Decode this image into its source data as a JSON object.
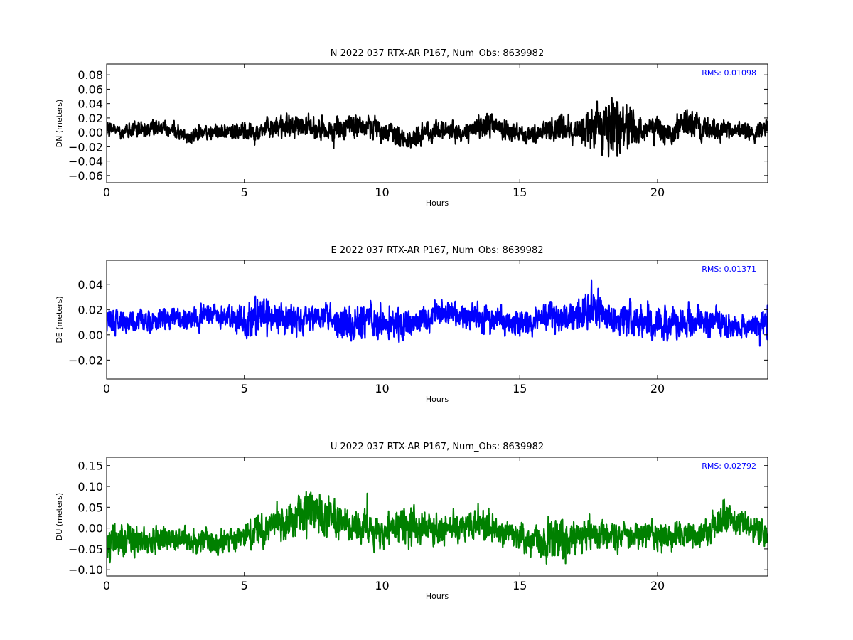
{
  "chart_data": [
    {
      "type": "line",
      "title": "N 2022 037 RTX-AR  P167, Num_Obs: 8639982",
      "xlabel": "Hours",
      "ylabel": "DN (meters)",
      "xlim": [
        0,
        24
      ],
      "ylim": [
        -0.07,
        0.095
      ],
      "xticks": [
        0,
        5,
        10,
        15,
        20
      ],
      "yticks": [
        -0.06,
        -0.04,
        -0.02,
        0.0,
        0.02,
        0.04,
        0.06,
        0.08
      ],
      "ytick_labels": [
        "−0.06",
        "−0.04",
        "−0.02",
        "0.00",
        "0.02",
        "0.04",
        "0.06",
        "0.08"
      ],
      "color": "#000000",
      "rms_text": "RMS:  0.01098",
      "rms_color": "#0000ff",
      "grid": false,
      "series": [
        {
          "values_description_free": true,
          "x": [
            0,
            0.5,
            1,
            1.5,
            2,
            2.5,
            3,
            3.5,
            4,
            4.5,
            5,
            5.5,
            6,
            6.5,
            7,
            7.5,
            8,
            8.5,
            9,
            9.5,
            10,
            10.5,
            11,
            11.5,
            12,
            12.5,
            13,
            13.5,
            14,
            14.5,
            15,
            15.5,
            16,
            16.5,
            17,
            17.5,
            18,
            18.5,
            19,
            19.5,
            20,
            20.5,
            21,
            21.5,
            22,
            22.5,
            23,
            23.5,
            24
          ],
          "center": [
            0.003,
            0.002,
            0.003,
            0.004,
            0.005,
            0.002,
            -0.004,
            0.0,
            0.002,
            0.0,
            0.001,
            0.004,
            0.006,
            0.01,
            0.008,
            0.006,
            0.002,
            0.006,
            0.01,
            0.008,
            0.003,
            -0.002,
            -0.012,
            0.0,
            0.003,
            0.002,
            -0.002,
            0.008,
            0.01,
            0.002,
            0.0,
            -0.002,
            0.004,
            0.006,
            0.002,
            0.006,
            0.012,
            0.014,
            0.005,
            0.003,
            0.005,
            0.0,
            0.012,
            0.01,
            0.003,
            0.002,
            0.004,
            0.0,
            0.004
          ],
          "spread": [
            0.012,
            0.011,
            0.011,
            0.012,
            0.012,
            0.011,
            0.011,
            0.011,
            0.011,
            0.012,
            0.013,
            0.013,
            0.015,
            0.017,
            0.016,
            0.015,
            0.014,
            0.015,
            0.016,
            0.015,
            0.015,
            0.016,
            0.018,
            0.015,
            0.015,
            0.015,
            0.015,
            0.017,
            0.017,
            0.014,
            0.012,
            0.013,
            0.018,
            0.02,
            0.018,
            0.028,
            0.035,
            0.045,
            0.03,
            0.018,
            0.02,
            0.018,
            0.022,
            0.02,
            0.015,
            0.013,
            0.013,
            0.012,
            0.012
          ]
        }
      ]
    },
    {
      "type": "line",
      "title": "E 2022 037 RTX-AR  P167, Num_Obs: 8639982",
      "xlabel": "Hours",
      "ylabel": "DE (meters)",
      "xlim": [
        0,
        24
      ],
      "ylim": [
        -0.035,
        0.059
      ],
      "xticks": [
        0,
        5,
        10,
        15,
        20
      ],
      "yticks": [
        -0.02,
        0.0,
        0.02,
        0.04
      ],
      "ytick_labels": [
        "−0.02",
        "0.00",
        "0.02",
        "0.04"
      ],
      "color": "#0000ff",
      "rms_text": "RMS:  0.01371",
      "rms_color": "#0000ff",
      "grid": false,
      "series": [
        {
          "x": [
            0,
            0.5,
            1,
            1.5,
            2,
            2.5,
            3,
            3.5,
            4,
            4.5,
            5,
            5.5,
            6,
            6.5,
            7,
            7.5,
            8,
            8.5,
            9,
            9.5,
            10,
            10.5,
            11,
            11.5,
            12,
            12.5,
            13,
            13.5,
            14,
            14.5,
            15,
            15.5,
            16,
            16.5,
            17,
            17.5,
            18,
            18.5,
            19,
            19.5,
            20,
            20.5,
            21,
            21.5,
            22,
            22.5,
            23,
            23.5,
            24
          ],
          "center": [
            0.01,
            0.011,
            0.012,
            0.012,
            0.013,
            0.013,
            0.012,
            0.014,
            0.015,
            0.013,
            0.012,
            0.015,
            0.013,
            0.011,
            0.012,
            0.012,
            0.012,
            0.01,
            0.01,
            0.012,
            0.01,
            0.008,
            0.008,
            0.013,
            0.016,
            0.016,
            0.015,
            0.013,
            0.012,
            0.011,
            0.01,
            0.011,
            0.013,
            0.013,
            0.016,
            0.02,
            0.015,
            0.012,
            0.012,
            0.01,
            0.008,
            0.01,
            0.012,
            0.011,
            0.01,
            0.008,
            0.007,
            0.007,
            0.008
          ],
          "spread": [
            0.012,
            0.01,
            0.009,
            0.009,
            0.009,
            0.009,
            0.009,
            0.01,
            0.01,
            0.011,
            0.014,
            0.017,
            0.013,
            0.011,
            0.011,
            0.011,
            0.011,
            0.013,
            0.015,
            0.015,
            0.013,
            0.013,
            0.013,
            0.011,
            0.011,
            0.01,
            0.01,
            0.011,
            0.011,
            0.011,
            0.012,
            0.012,
            0.011,
            0.011,
            0.012,
            0.016,
            0.013,
            0.012,
            0.013,
            0.012,
            0.012,
            0.012,
            0.013,
            0.012,
            0.011,
            0.01,
            0.01,
            0.01,
            0.012
          ]
        }
      ]
    },
    {
      "type": "line",
      "title": "U 2022 037 RTX-AR  P167, Num_Obs: 8639982",
      "xlabel": "Hours",
      "ylabel": "DU (meters)",
      "xlim": [
        0,
        24
      ],
      "ylim": [
        -0.115,
        0.17
      ],
      "xticks": [
        0,
        5,
        10,
        15,
        20
      ],
      "yticks": [
        -0.1,
        -0.05,
        0.0,
        0.05,
        0.1,
        0.15
      ],
      "ytick_labels": [
        "−0.10",
        "−0.05",
        "0.00",
        "0.05",
        "0.10",
        "0.15"
      ],
      "color": "#008000",
      "rms_text": "RMS:  0.02792",
      "rms_color": "#0000ff",
      "grid": false,
      "series": [
        {
          "x": [
            0,
            0.5,
            1,
            1.5,
            2,
            2.5,
            3,
            3.5,
            4,
            4.5,
            5,
            5.5,
            6,
            6.5,
            7,
            7.5,
            8,
            8.5,
            9,
            9.5,
            10,
            10.5,
            11,
            11.5,
            12,
            12.5,
            13,
            13.5,
            14,
            14.5,
            15,
            15.5,
            16,
            16.5,
            17,
            17.5,
            18,
            18.5,
            19,
            19.5,
            20,
            20.5,
            21,
            21.5,
            22,
            22.5,
            23,
            23.5,
            24
          ],
          "center": [
            -0.03,
            -0.03,
            -0.028,
            -0.03,
            -0.028,
            -0.025,
            -0.03,
            -0.03,
            -0.035,
            -0.03,
            -0.02,
            -0.005,
            0.01,
            0.015,
            0.025,
            0.04,
            0.03,
            0.01,
            0.0,
            -0.005,
            -0.01,
            0.0,
            0.01,
            0.0,
            0.0,
            0.005,
            0.0,
            0.01,
            0.0,
            -0.01,
            -0.02,
            -0.035,
            -0.03,
            -0.025,
            -0.02,
            -0.02,
            -0.015,
            -0.025,
            -0.02,
            -0.015,
            -0.02,
            -0.02,
            -0.01,
            -0.02,
            0.0,
            0.03,
            0.01,
            0.0,
            -0.01
          ],
          "spread": [
            0.045,
            0.04,
            0.038,
            0.035,
            0.03,
            0.03,
            0.03,
            0.03,
            0.032,
            0.03,
            0.035,
            0.04,
            0.04,
            0.045,
            0.05,
            0.06,
            0.05,
            0.04,
            0.04,
            0.04,
            0.035,
            0.04,
            0.05,
            0.035,
            0.035,
            0.035,
            0.035,
            0.045,
            0.035,
            0.035,
            0.035,
            0.035,
            0.05,
            0.055,
            0.045,
            0.04,
            0.035,
            0.035,
            0.035,
            0.035,
            0.035,
            0.035,
            0.035,
            0.035,
            0.035,
            0.045,
            0.035,
            0.03,
            0.035
          ]
        }
      ]
    }
  ]
}
